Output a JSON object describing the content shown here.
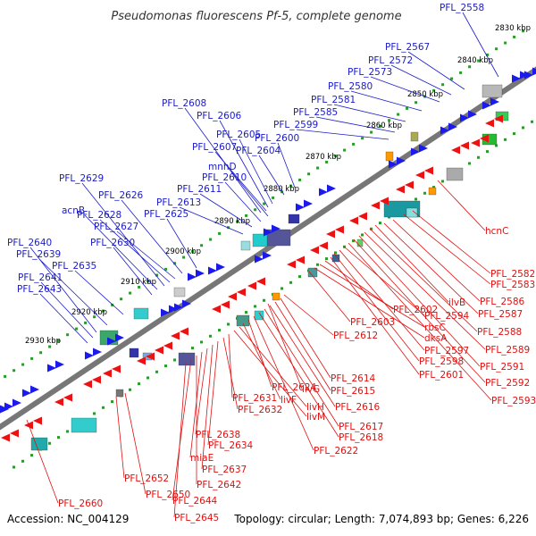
{
  "title": "Pseudomonas fluorescens Pf-5, complete genome",
  "footer": {
    "accession": "Accession: NC_004129",
    "summary": "Topology: circular; Length: 7,074,893 bp; Genes: 6,226"
  },
  "colors": {
    "forward_label": "#1a1acc",
    "reverse_label": "#e01010",
    "forward_gene": "#1a1aee",
    "reverse_gene": "#ee1111",
    "backbone": "#777777",
    "dots": "#2a9a2a"
  },
  "ticks": [
    "2830 kbp",
    "2840 kbp",
    "2850 kbp",
    "2860 kbp",
    "2870 kbp",
    "2880 kbp",
    "2890 kbp",
    "2900 kbp",
    "2910 kbp",
    "2920 kbp",
    "2930 kbp"
  ],
  "forward_labels": [
    "PFL_2558",
    "PFL_2567",
    "PFL_2572",
    "PFL_2573",
    "PFL_2580",
    "PFL_2581",
    "PFL_2585",
    "PFL_2599",
    "PFL_2600",
    "PFL_2604",
    "PFL_2605",
    "PFL_2606",
    "PFL_2607",
    "PFL_2608",
    "mnhD",
    "PFL_2610",
    "PFL_2611",
    "PFL_2613",
    "PFL_2625",
    "PFL_2626",
    "PFL_2627",
    "PFL_2628",
    "PFL_2629",
    "acnB",
    "PFL_2630",
    "PFL_2635",
    "PFL_2639",
    "PFL_2640",
    "PFL_2641",
    "PFL_2643"
  ],
  "reverse_labels": [
    "hcnC",
    "PFL_2582",
    "PFL_2583",
    "PFL_2586",
    "PFL_2587",
    "ilvB",
    "PFL_2588",
    "PFL_2589",
    "PFL_2591",
    "PFL_2592",
    "PFL_2593",
    "PFL_2594",
    "PFL_2597",
    "PFL_2598",
    "PFL_2601",
    "PFL_2602",
    "rbsC",
    "dksA",
    "PFL_2603",
    "PFL_2612",
    "PFL_2614",
    "PFL_2615",
    "PFL_2616",
    "PFL_2617",
    "PFL_2618",
    "PFL_2622",
    "PFL_2624",
    "livG",
    "livF",
    "livH",
    "livM",
    "PFL_2631",
    "PFL_2632",
    "PFL_2634",
    "PFL_2637",
    "PFL_2638",
    "miaE",
    "PFL_2642",
    "PFL_2644",
    "PFL_2645",
    "PFL_2650",
    "PFL_2652",
    "PFL_2660"
  ]
}
